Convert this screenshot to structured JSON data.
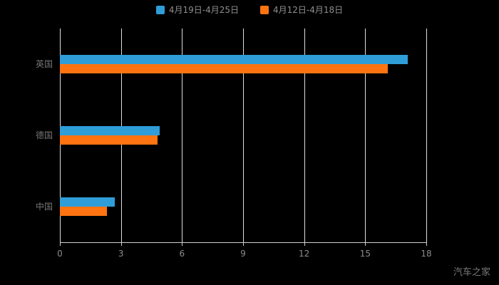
{
  "watermark": "汽车之家",
  "colors": {
    "background": "#000000",
    "series1": "#2F9DD8",
    "series2": "#FF7411",
    "grid": "#DEDEDE",
    "axis": "#CFCFCF",
    "tick_text": "#8C8C8C",
    "category_text": "#767676",
    "legend_text": "#8E8E8E"
  },
  "chart_data": {
    "type": "bar",
    "orientation": "horizontal",
    "title": "",
    "xlabel": "",
    "ylabel": "",
    "categories": [
      "英国",
      "德国",
      "中国"
    ],
    "series": [
      {
        "name": "4月19日-4月25日",
        "color": "#2F9DD8",
        "values": [
          17.1,
          4.9,
          2.7
        ]
      },
      {
        "name": "4月12日-4月18日",
        "color": "#FF7411",
        "values": [
          16.1,
          4.8,
          2.3
        ]
      }
    ],
    "xlim": [
      0,
      18
    ],
    "xticks": [
      0,
      3,
      6,
      9,
      12,
      15,
      18
    ],
    "grid": true,
    "legend_position": "top"
  }
}
